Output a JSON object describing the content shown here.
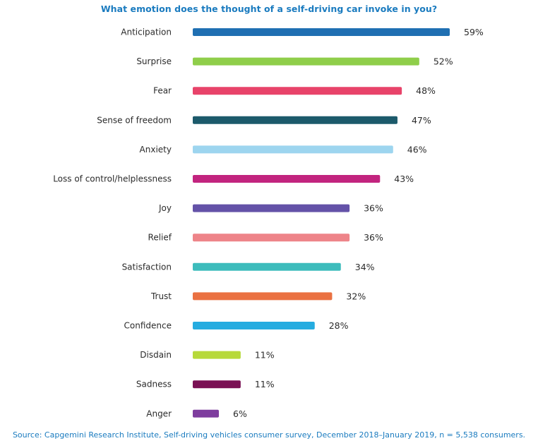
{
  "chart_data": {
    "type": "bar",
    "orientation": "horizontal",
    "title": "What emotion does the thought of a self-driving car invoke in you?",
    "categories": [
      "Anticipation",
      "Surprise",
      "Fear",
      "Sense of freedom",
      "Anxiety",
      "Loss of control/helplessness",
      "Joy",
      "Relief",
      "Satisfaction",
      "Trust",
      "Confidence",
      "Disdain",
      "Sadness",
      "Anger"
    ],
    "values": [
      59,
      52,
      48,
      47,
      46,
      43,
      36,
      36,
      34,
      32,
      28,
      11,
      11,
      6
    ],
    "value_labels": [
      "59%",
      "52%",
      "48%",
      "47%",
      "46%",
      "43%",
      "36%",
      "36%",
      "34%",
      "32%",
      "28%",
      "11%",
      "11%",
      "6%"
    ],
    "colors": [
      "#1f6fb2",
      "#8fce4a",
      "#e8436a",
      "#1c5a6b",
      "#9dd5ef",
      "#c2247f",
      "#6452a8",
      "#ee8489",
      "#3dbcbc",
      "#ea7142",
      "#25ace0",
      "#b7d93a",
      "#7a1154",
      "#7e3d9e"
    ],
    "xlim": [
      0,
      59
    ],
    "xlabel": "",
    "ylabel": "",
    "grid": false,
    "legend": "none",
    "unit": "%"
  },
  "source": "Source: Capgemini Research Institute, Self-driving vehicles consumer survey, December 2018–January 2019, n = 5,538 consumers."
}
